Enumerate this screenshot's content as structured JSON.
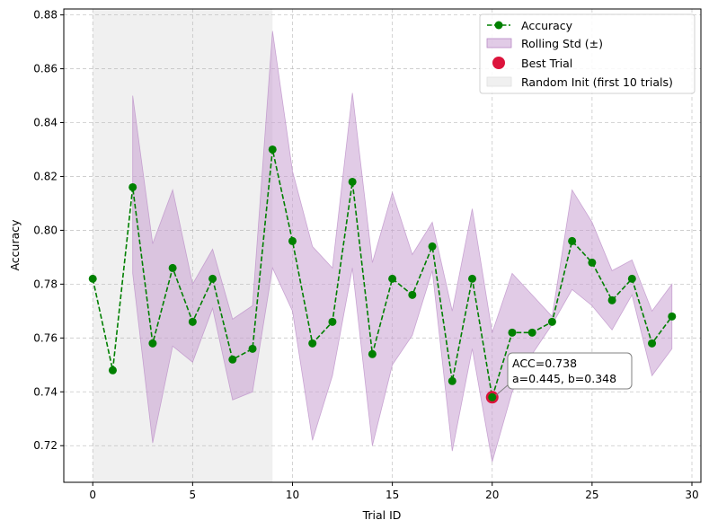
{
  "chart_data": {
    "type": "line",
    "title": "",
    "xlabel": "Trial ID",
    "ylabel": "Accuracy",
    "xlim": [
      -1.45,
      30.45
    ],
    "ylim": [
      0.7064,
      0.8822
    ],
    "xticks": [
      0,
      5,
      10,
      15,
      20,
      25,
      30
    ],
    "yticks": [
      0.72,
      0.74,
      0.76,
      0.78,
      0.8,
      0.82,
      0.84,
      0.86,
      0.88
    ],
    "grid": true,
    "legend_position": "top-right",
    "series": [
      {
        "name": "Accuracy",
        "color": "#008000",
        "x": [
          0,
          1,
          2,
          3,
          4,
          5,
          6,
          7,
          8,
          9,
          10,
          11,
          12,
          13,
          14,
          15,
          16,
          17,
          18,
          19,
          20,
          21,
          22,
          23,
          24,
          25,
          26,
          27,
          28,
          29
        ],
        "values": [
          0.782,
          0.748,
          0.816,
          0.758,
          0.786,
          0.766,
          0.782,
          0.752,
          0.756,
          0.83,
          0.796,
          0.758,
          0.766,
          0.818,
          0.754,
          0.782,
          0.776,
          0.794,
          0.744,
          0.782,
          0.738,
          0.762,
          0.762,
          0.766,
          0.796,
          0.788,
          0.774,
          0.782,
          0.758,
          0.768
        ]
      }
    ],
    "band": {
      "name": "Rolling Std (±)",
      "color": "#c8a0d2",
      "x": [
        2,
        3,
        4,
        5,
        6,
        7,
        8,
        9,
        10,
        11,
        12,
        13,
        14,
        15,
        16,
        17,
        18,
        19,
        20,
        21,
        22,
        23,
        24,
        25,
        26,
        27,
        28,
        29
      ],
      "lower": [
        0.784,
        0.721,
        0.757,
        0.751,
        0.771,
        0.737,
        0.74,
        0.786,
        0.77,
        0.722,
        0.746,
        0.786,
        0.72,
        0.75,
        0.761,
        0.785,
        0.718,
        0.756,
        0.714,
        0.74,
        0.754,
        0.765,
        0.778,
        0.772,
        0.763,
        0.776,
        0.746,
        0.756
      ],
      "upper": [
        0.85,
        0.795,
        0.815,
        0.78,
        0.793,
        0.767,
        0.772,
        0.874,
        0.822,
        0.794,
        0.786,
        0.851,
        0.788,
        0.814,
        0.791,
        0.803,
        0.77,
        0.808,
        0.762,
        0.784,
        0.776,
        0.768,
        0.815,
        0.803,
        0.785,
        0.789,
        0.77,
        0.78
      ]
    },
    "best_trial": {
      "name": "Best Trial",
      "x": 20,
      "y": 0.738,
      "color": "#dc143c"
    },
    "random_init": {
      "name": "Random Init (first 10 trials)",
      "x_start": 0,
      "x_end": 9,
      "color": "#f0f0f0"
    },
    "annotation": {
      "line1": "ACC=0.738",
      "line2": "a=0.445, b=0.348",
      "target_x": 20,
      "target_y": 0.738
    }
  },
  "legend": {
    "accuracy": "Accuracy",
    "rolling_std": "Rolling Std (±)",
    "best_trial": "Best Trial",
    "random_init": "Random Init (first 10 trials)"
  }
}
